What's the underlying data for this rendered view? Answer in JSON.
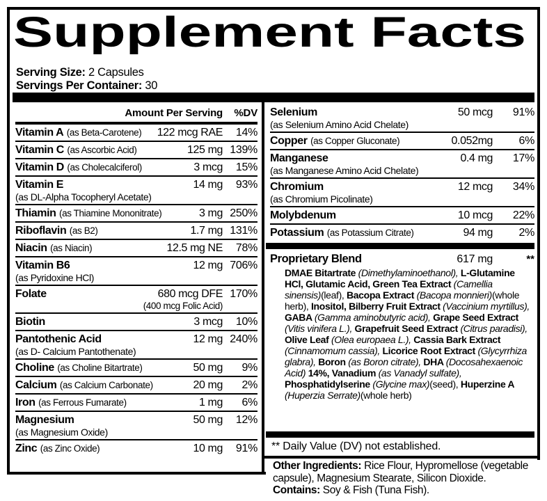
{
  "title": "Supplement Facts",
  "serving": {
    "size_label": "Serving Size:",
    "size_value": "2 Capsules",
    "container_label": "Servings Per Container:",
    "container_value": "30"
  },
  "table": {
    "header": {
      "amount": "Amount Per Serving",
      "dv": "%DV"
    },
    "left_rows": [
      {
        "name": "Vitamin A",
        "qualifier": "(as Beta-Carotene)",
        "amount": "122 mcg RAE",
        "dv": "14%"
      },
      {
        "name": "Vitamin C",
        "qualifier": "(as Ascorbic Acid)",
        "amount": "125 mg",
        "dv": "139%"
      },
      {
        "name": "Vitamin D",
        "qualifier": "(as Cholecalciferol)",
        "amount": "3 mcg",
        "dv": "15%"
      },
      {
        "name": "Vitamin E",
        "sub_qualifier": "(as DL-Alpha Tocopheryl Acetate)",
        "amount": "14 mg",
        "dv": "93%"
      },
      {
        "name": "Thiamin",
        "qualifier": "(as Thiamine Mononitrate)",
        "amount": "3 mg",
        "dv": "250%"
      },
      {
        "name": "Riboflavin",
        "qualifier": "(as B2)",
        "amount": "1.7 mg",
        "dv": "131%"
      },
      {
        "name": "Niacin",
        "qualifier": "(as Niacin)",
        "amount": "12.5 mg NE",
        "dv": "78%"
      },
      {
        "name": "Vitamin B6",
        "sub_qualifier": "(as Pyridoxine HCl)",
        "amount": "12 mg",
        "dv": "706%"
      },
      {
        "name": "Folate",
        "amount": "680 mcg DFE",
        "amount_sub": "(400 mcg Folic Acid)",
        "dv": "170%"
      },
      {
        "name": "Biotin",
        "amount": "3 mcg",
        "dv": "10%"
      },
      {
        "name": "Pantothenic Acid",
        "sub_qualifier": "(as D- Calcium Pantothenate)",
        "amount": "12 mg",
        "dv": "240%"
      },
      {
        "name": "Choline",
        "qualifier": "(as Choline Bitartrate)",
        "amount": "50 mg",
        "dv": "9%"
      },
      {
        "name": "Calcium",
        "qualifier": "(as Calcium Carbonate)",
        "amount": "20 mg",
        "dv": "2%"
      },
      {
        "name": "Iron",
        "qualifier": "(as Ferrous Fumarate)",
        "amount": "1 mg",
        "dv": "6%"
      },
      {
        "name": "Magnesium",
        "sub_qualifier": "(as Magnesium Oxide)",
        "amount": "50 mg",
        "dv": "12%"
      },
      {
        "name": "Zinc",
        "qualifier": "(as Zinc Oxide)",
        "amount": "10 mg",
        "dv": "91%"
      }
    ],
    "right_rows": [
      {
        "name": "Selenium",
        "sub_qualifier": "(as Selenium Amino Acid Chelate)",
        "amount": "50 mcg",
        "dv": "91%"
      },
      {
        "name": "Copper",
        "qualifier": "(as Copper Gluconate)",
        "amount": "0.052mg",
        "dv": "6%"
      },
      {
        "name": "Manganese",
        "sub_qualifier": "(as Manganese Amino Acid Chelate)",
        "amount": "0.4 mg",
        "dv": "17%"
      },
      {
        "name": "Chromium",
        "sub_qualifier": "(as Chromium Picolinate)",
        "amount": "12 mcg",
        "dv": "34%"
      },
      {
        "name": "Molybdenum",
        "amount": "10 mcg",
        "dv": "22%"
      },
      {
        "name": "Potassium",
        "qualifier": "(as Potassium Citrate)",
        "amount": "94 mg",
        "dv": "2%"
      }
    ]
  },
  "blend": {
    "name": "Proprietary Blend",
    "amount": "617 mg",
    "dv": "**",
    "ingredients": [
      {
        "s": "b",
        "t": "DMAE Bitartrate "
      },
      {
        "s": "i",
        "t": "(Dimethylaminoethanol), "
      },
      {
        "s": "b",
        "t": "L-Glutamine HCl, Glutamic Acid, Green Tea Extract "
      },
      {
        "s": "i",
        "t": "(Camellia sinensis)"
      },
      {
        "s": "r",
        "t": "(leaf), "
      },
      {
        "s": "b",
        "t": "Bacopa Extract "
      },
      {
        "s": "i",
        "t": "(Bacopa monnieri)"
      },
      {
        "s": "r",
        "t": "(whole herb), "
      },
      {
        "s": "b",
        "t": "Inositol, Bilberry Fruit Extract "
      },
      {
        "s": "i",
        "t": "(Vaccinium myrtillus), "
      },
      {
        "s": "b",
        "t": "GABA "
      },
      {
        "s": "i",
        "t": "(Gamma aminobutyric acid), "
      },
      {
        "s": "b",
        "t": "Grape Seed Extract "
      },
      {
        "s": "i",
        "t": "(Vitis vinifera L.), "
      },
      {
        "s": "b",
        "t": "Grapefruit Seed Extract "
      },
      {
        "s": "i",
        "t": "(Citrus paradisi), "
      },
      {
        "s": "b",
        "t": "Olive Leaf "
      },
      {
        "s": "i",
        "t": "(Olea europaea L.), "
      },
      {
        "s": "b",
        "t": "Cassia Bark Extract "
      },
      {
        "s": "i",
        "t": "(Cinnamomum cassia), "
      },
      {
        "s": "b",
        "t": "Licorice Root Extract "
      },
      {
        "s": "i",
        "t": "(Glycyrrhiza glabra), "
      },
      {
        "s": "b",
        "t": "Boron "
      },
      {
        "s": "i",
        "t": "(as Boron citrate), "
      },
      {
        "s": "b",
        "t": "DHA "
      },
      {
        "s": "i",
        "t": "(Docosahexaenoic Acid) "
      },
      {
        "s": "b",
        "t": "14%, Vanadium "
      },
      {
        "s": "i",
        "t": "(as Vanadyl sulfate), "
      },
      {
        "s": "b",
        "t": "Phosphatidylserine "
      },
      {
        "s": "i",
        "t": "(Glycine max)"
      },
      {
        "s": "r",
        "t": "(seed), "
      },
      {
        "s": "b",
        "t": "Huperzine A "
      },
      {
        "s": "i",
        "t": "(Huperzia Serrate)"
      },
      {
        "s": "r",
        "t": "(whole herb)"
      }
    ]
  },
  "footnote": "** Daily Value (DV) not established.",
  "other": {
    "label": "Other Ingredients:",
    "text": "Rice Flour, Hypromellose (vegetable capsule), Magnesium Stearate, Silicon Dioxide.",
    "contains_label": "Contains:",
    "contains_text": "Soy & Fish (Tuna Fish)."
  }
}
